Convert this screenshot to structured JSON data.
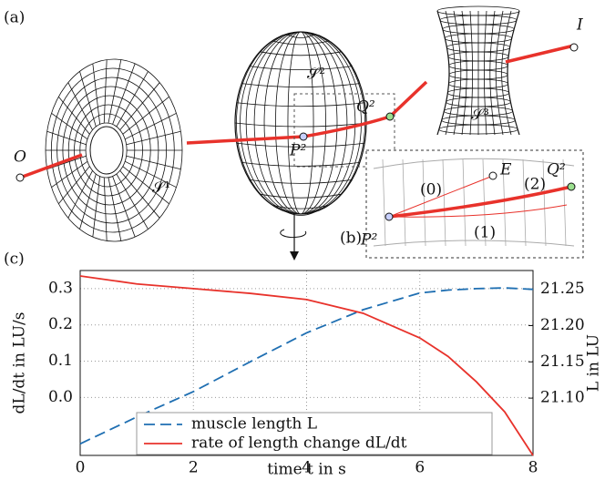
{
  "diagram": {
    "panel": "(a)",
    "start": "O",
    "end": "I",
    "surfaces": [
      "𝒮¹",
      "𝒮²",
      "𝒮³"
    ],
    "p": "P²",
    "q": "Q²"
  },
  "inset": {
    "panel": "(b)",
    "p": "P²",
    "q": "Q²",
    "e": "E",
    "paths": [
      "(0)",
      "(1)",
      "(2)"
    ]
  },
  "chart_data": {
    "type": "line",
    "panel": "(c)",
    "x_label": "time t in s",
    "y_label": "dL/dt in LU/s",
    "y2_label": "L in LU",
    "x": [
      0,
      1,
      2,
      3,
      4,
      5,
      6,
      6.5,
      7,
      7.5,
      8
    ],
    "series": [
      {
        "name": "muscle length L",
        "color": "#1f6fb2",
        "axis": "y2",
        "dash": "dashed",
        "values": [
          21.037,
          21.074,
          21.109,
          21.15,
          21.19,
          21.222,
          21.245,
          21.249,
          21.251,
          21.252,
          21.25
        ]
      },
      {
        "name": "rate of length change dL/dt",
        "color": "#e8322b",
        "dash": "solid",
        "values": [
          0.335,
          0.313,
          0.3,
          0.287,
          0.27,
          0.232,
          0.164,
          0.113,
          0.043,
          -0.04,
          -0.16
        ]
      }
    ],
    "xlim": [
      0,
      8
    ],
    "xticks": [
      0,
      2,
      4,
      6,
      8
    ],
    "ylim": [
      -0.16,
      0.35
    ],
    "yticks": [
      {
        "value": 0,
        "label": "0.0"
      },
      0.1,
      0.2,
      0.3
    ],
    "y2lim": [
      21.021,
      21.276
    ],
    "y2ticks": [
      {
        "value": 21.1,
        "label": "21.10"
      },
      21.15,
      {
        "value": 21.2,
        "label": "21.20"
      },
      21.25
    ],
    "grid": true,
    "legend": "bottom"
  }
}
